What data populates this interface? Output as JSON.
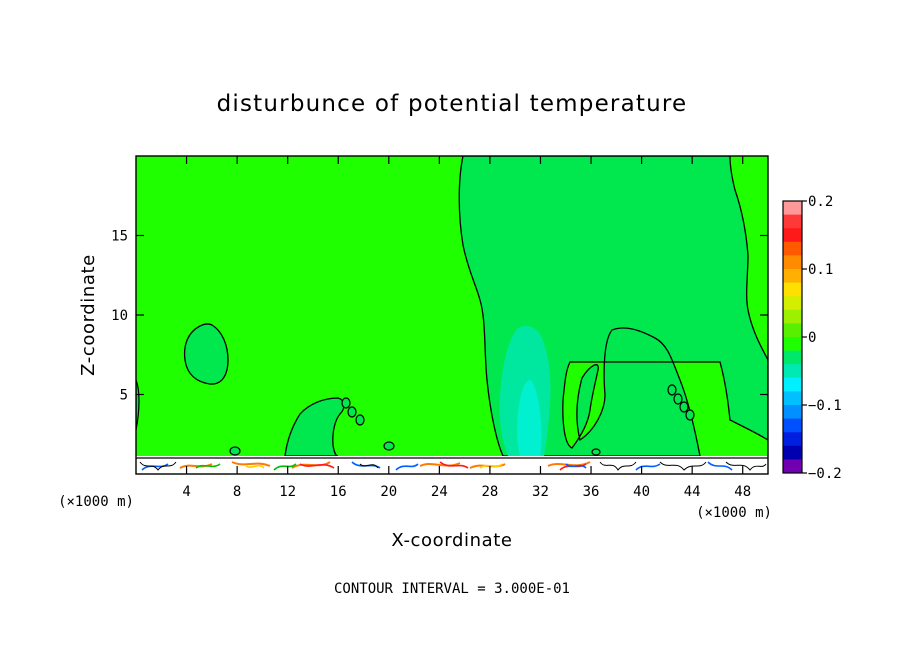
{
  "chart_data": {
    "type": "heatmap",
    "title": "disturbunce of potential temperature",
    "xlabel": "X-coordinate",
    "ylabel": "Z-coordinate",
    "x_unit": "(×1000 m)",
    "y_unit": "(×1000 m)",
    "xlim": [
      0,
      50
    ],
    "ylim": [
      0,
      20
    ],
    "x_ticks": [
      4,
      8,
      12,
      16,
      20,
      24,
      28,
      32,
      36,
      40,
      44,
      48
    ],
    "y_ticks": [
      5,
      10,
      15
    ],
    "footer": "CONTOUR INTERVAL = 3.000E-01",
    "contour_interval": 0.3,
    "colorbar": {
      "min": -0.2,
      "max": 0.2,
      "tick_labels": [
        "0.2",
        "0.1",
        "0",
        "−0.1",
        "−0.2"
      ],
      "tick_values": [
        0.2,
        0.1,
        0,
        -0.1,
        -0.2
      ],
      "colors": [
        "#ff9898",
        "#ff3838",
        "#ff1a1a",
        "#ff5a00",
        "#ff8c00",
        "#ffb000",
        "#ffe000",
        "#d4ee00",
        "#9cf000",
        "#58f000",
        "#20ff00",
        "#00e86a",
        "#00e8b4",
        "#00f0ff",
        "#00c0ff",
        "#0090ff",
        "#0050ff",
        "#0020e0",
        "#0000b0",
        "#7000b0"
      ]
    },
    "background_color": "#20ff00",
    "regions": [
      {
        "level": "slightly negative",
        "color": "#00e84e"
      },
      {
        "level": "negative",
        "color": "#00e8a0"
      },
      {
        "level": "more negative",
        "color": "#00f0d0"
      }
    ],
    "grid": false
  }
}
